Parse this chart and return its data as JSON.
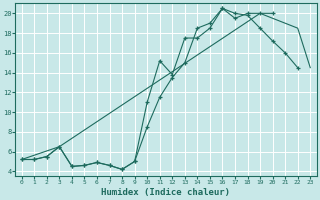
{
  "xlabel": "Humidex (Indice chaleur)",
  "bg_color": "#c8e8e8",
  "grid_color": "#b0d8d8",
  "line_color": "#1e6b5e",
  "xlim": [
    -0.5,
    23.5
  ],
  "ylim": [
    3.5,
    21.0
  ],
  "xticks": [
    0,
    1,
    2,
    3,
    4,
    5,
    6,
    7,
    8,
    9,
    10,
    11,
    12,
    13,
    14,
    15,
    16,
    17,
    18,
    19,
    20,
    21,
    22,
    23
  ],
  "yticks": [
    4,
    6,
    8,
    10,
    12,
    14,
    16,
    18,
    20
  ],
  "line1_x": [
    0,
    1,
    2,
    3,
    4,
    5,
    6,
    7,
    8,
    9,
    10,
    11,
    12,
    13,
    14,
    15,
    16,
    17,
    18,
    19,
    20,
    21,
    22
  ],
  "line1_y": [
    5.2,
    5.2,
    5.5,
    6.5,
    4.5,
    4.6,
    4.9,
    4.6,
    4.2,
    5.0,
    11.0,
    15.2,
    13.8,
    17.5,
    17.5,
    18.5,
    20.5,
    20.0,
    19.8,
    18.5,
    17.2,
    16.0,
    14.5
  ],
  "line2_x": [
    0,
    1,
    2,
    3,
    4,
    5,
    6,
    7,
    8,
    9,
    10,
    11,
    12,
    13,
    14,
    15,
    16,
    17,
    18,
    19,
    20
  ],
  "line2_y": [
    5.2,
    5.2,
    5.5,
    6.5,
    4.5,
    4.6,
    4.9,
    4.6,
    4.2,
    5.0,
    8.5,
    11.5,
    13.5,
    15.0,
    18.5,
    19.0,
    20.5,
    19.5,
    20.0,
    20.0,
    20.0
  ],
  "line3_x": [
    0,
    3,
    19,
    22,
    23
  ],
  "line3_y": [
    5.2,
    6.5,
    20.0,
    18.5,
    14.5
  ]
}
